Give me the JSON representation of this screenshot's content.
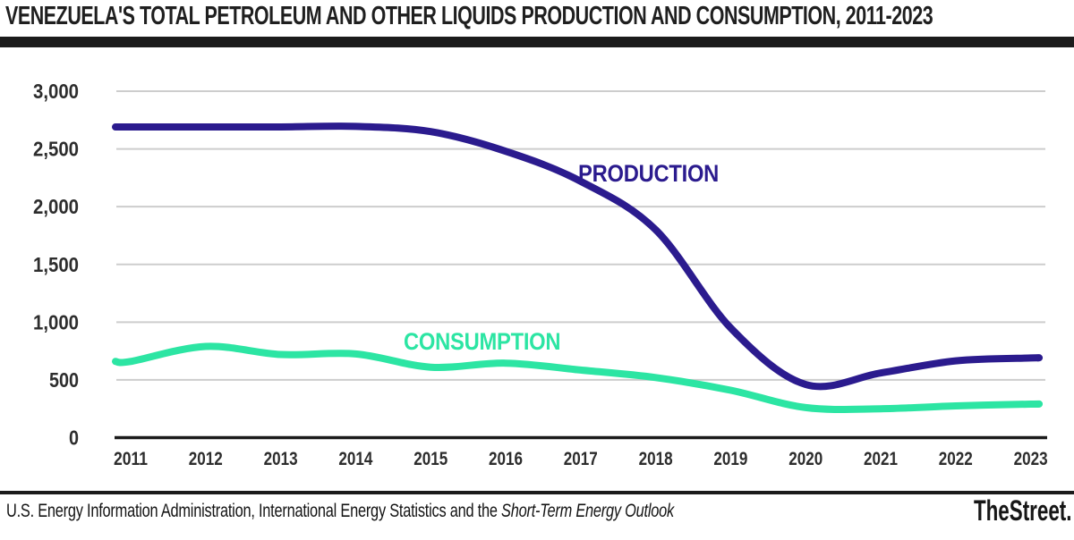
{
  "header": {
    "title": "VENEZUELA'S TOTAL PETROLEUM AND OTHER LIQUIDS PRODUCTION AND CONSUMPTION, 2011-2023"
  },
  "footer": {
    "source_regular": "U.S. Energy Information Administration, International Energy Statistics and the ",
    "source_italic": "Short-Term Energy Outlook",
    "brand": "TheStreet."
  },
  "colors": {
    "production": "#2b1b8e",
    "consumption": "#2ce5a3",
    "gridline": "#cdcdcd",
    "axis": "#1b1b1b",
    "title_bar": "#1c1c1c",
    "tick_text": "#2d2d2d"
  },
  "chart_data": {
    "type": "line",
    "title": "VENEZUELA'S TOTAL PETROLEUM AND OTHER LIQUIDS PRODUCTION AND CONSUMPTION, 2011-2023",
    "x": [
      2011,
      2012,
      2013,
      2014,
      2015,
      2016,
      2017,
      2018,
      2019,
      2020,
      2021,
      2022,
      2023
    ],
    "xtick_labels": [
      "2011",
      "2012",
      "2013",
      "2014",
      "2015",
      "2016",
      "2017",
      "2018",
      "2019",
      "2020",
      "2021",
      "2022",
      "2023"
    ],
    "ylim": [
      0,
      3000
    ],
    "yticks": [
      0,
      500,
      1000,
      1500,
      2000,
      2500,
      3000
    ],
    "ytick_labels": [
      "0",
      "500",
      "1,000",
      "1,500",
      "2,000",
      "2,500",
      "3,000"
    ],
    "grid": "horizontal",
    "legend_position": "inline-labels-on-chart",
    "series": [
      {
        "name": "PRODUCTION",
        "color": "#2b1b8e",
        "values": [
          2690,
          2690,
          2690,
          2695,
          2650,
          2480,
          2220,
          1800,
          950,
          460,
          560,
          665,
          690
        ]
      },
      {
        "name": "CONSUMPTION",
        "color": "#2ce5a3",
        "values": [
          660,
          790,
          720,
          725,
          610,
          645,
          585,
          520,
          410,
          260,
          250,
          275,
          290
        ]
      }
    ]
  }
}
